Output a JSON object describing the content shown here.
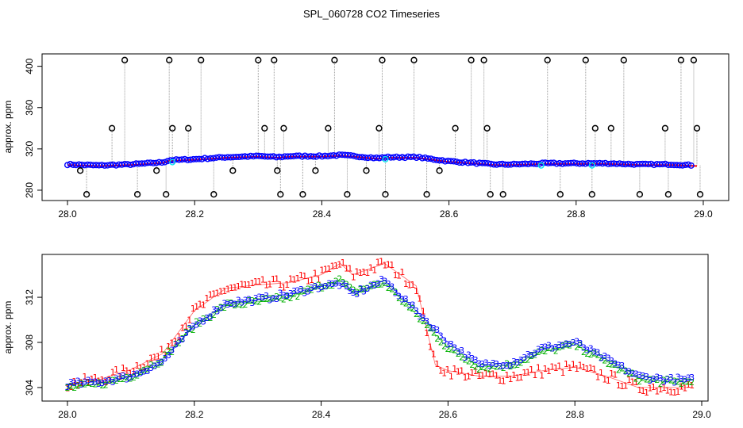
{
  "figure": {
    "title": "SPL_060728  CO2 Timeseries"
  },
  "chart_data": [
    {
      "type": "scatter",
      "title": "",
      "xlabel": "",
      "ylabel": "approx. ppm",
      "xlim": [
        27.96,
        29.04
      ],
      "ylim": [
        270,
        412
      ],
      "x_ticks": [
        28.0,
        28.2,
        28.4,
        28.6,
        28.8,
        29.0
      ],
      "x_tick_labels": [
        "28.0",
        "28.2",
        "28.4",
        "28.6",
        "28.8",
        "29.0"
      ],
      "y_ticks": [
        280,
        320,
        360,
        400
      ],
      "y_tick_labels": [
        "280",
        "320",
        "360",
        "400"
      ],
      "series": [
        {
          "name": "baseline (blue circles)",
          "color": "#0000ff",
          "x": [
            28.0,
            28.05,
            28.1,
            28.15,
            28.16,
            28.2,
            28.25,
            28.3,
            28.33,
            28.35,
            28.4,
            28.43,
            28.45,
            28.49,
            28.5,
            28.55,
            28.6,
            28.65,
            28.67,
            28.7,
            28.75,
            28.8,
            28.85,
            28.9,
            28.95,
            28.99
          ],
          "y": [
            305,
            304,
            305,
            307,
            309,
            310,
            312,
            313,
            312,
            313,
            313,
            314,
            313,
            311,
            312,
            312,
            308,
            306,
            305,
            305,
            306,
            306,
            306,
            305,
            305,
            304
          ]
        },
        {
          "name": "outliers (black circles)",
          "color": "#000000",
          "x": [
            28.02,
            28.03,
            28.07,
            28.09,
            28.11,
            28.14,
            28.155,
            28.16,
            28.165,
            28.19,
            28.21,
            28.23,
            28.26,
            28.3,
            28.31,
            28.325,
            28.33,
            28.335,
            28.34,
            28.37,
            28.39,
            28.41,
            28.42,
            28.44,
            28.47,
            28.49,
            28.495,
            28.5,
            28.545,
            28.565,
            28.585,
            28.61,
            28.635,
            28.655,
            28.66,
            28.665,
            28.685,
            28.755,
            28.775,
            28.815,
            28.825,
            28.83,
            28.855,
            28.875,
            28.9,
            28.94,
            28.945,
            28.965,
            28.985,
            28.99,
            28.995
          ],
          "y": [
            299,
            276,
            340,
            406,
            276,
            299,
            276,
            406,
            340,
            340,
            406,
            276,
            299,
            406,
            340,
            406,
            299,
            276,
            340,
            276,
            299,
            340,
            406,
            276,
            299,
            340,
            406,
            276,
            406,
            276,
            299,
            340,
            406,
            406,
            340,
            276,
            276,
            406,
            276,
            406,
            276,
            340,
            340,
            406,
            276,
            340,
            276,
            406,
            406,
            340,
            276
          ]
        }
      ]
    },
    {
      "type": "scatter",
      "title": "",
      "xlabel": "",
      "ylabel": "approx. ppm",
      "xlim": [
        27.96,
        29.01
      ],
      "ylim": [
        302.8,
        315.8
      ],
      "x_ticks": [
        28.0,
        28.2,
        28.4,
        28.6,
        28.8,
        29.0
      ],
      "x_tick_labels": [
        "28.0",
        "28.2",
        "28.4",
        "28.6",
        "28.8",
        "29.0"
      ],
      "y_ticks": [
        304,
        308,
        312
      ],
      "y_tick_labels": [
        "304",
        "308",
        "312"
      ],
      "series": [
        {
          "name": "1",
          "color": "#ff0000",
          "marker": "1",
          "x": [
            28.0,
            28.05,
            28.1,
            28.15,
            28.2,
            28.25,
            28.3,
            28.35,
            28.4,
            28.43,
            28.45,
            28.5,
            28.55,
            28.58,
            28.6,
            28.65,
            28.7,
            28.75,
            28.8,
            28.85,
            28.9,
            28.95,
            28.99
          ],
          "y": [
            304.3,
            304.7,
            305.6,
            307.0,
            310.8,
            312.8,
            313.1,
            313.3,
            314.0,
            315.0,
            314.0,
            315.0,
            313.0,
            306.0,
            305.5,
            305.0,
            305.0,
            305.5,
            305.8,
            305.0,
            304.0,
            304.0,
            304.0
          ]
        },
        {
          "name": "2",
          "color": "#00b000",
          "marker": "2",
          "x": [
            28.0,
            28.05,
            28.1,
            28.15,
            28.2,
            28.25,
            28.3,
            28.35,
            28.4,
            28.43,
            28.45,
            28.5,
            28.55,
            28.6,
            28.65,
            28.7,
            28.75,
            28.8,
            28.85,
            28.9,
            28.95,
            28.99
          ],
          "y": [
            304.0,
            304.3,
            305.0,
            306.5,
            309.5,
            311.3,
            311.6,
            312.0,
            313.0,
            313.5,
            312.5,
            313.3,
            310.5,
            307.5,
            305.8,
            306.0,
            307.2,
            307.8,
            306.3,
            304.8,
            304.5,
            304.5
          ]
        },
        {
          "name": "3",
          "color": "#0000ff",
          "marker": "3",
          "x": [
            28.0,
            28.05,
            28.1,
            28.15,
            28.2,
            28.25,
            28.3,
            28.35,
            28.4,
            28.43,
            28.45,
            28.5,
            28.55,
            28.6,
            28.65,
            28.7,
            28.75,
            28.8,
            28.85,
            28.9,
            28.95,
            28.99
          ],
          "y": [
            304.3,
            304.5,
            305.0,
            306.3,
            309.5,
            311.5,
            311.8,
            312.3,
            313.0,
            313.2,
            312.3,
            313.5,
            310.8,
            308.0,
            306.0,
            306.2,
            307.5,
            308.0,
            306.5,
            305.0,
            304.7,
            304.7
          ]
        }
      ]
    }
  ]
}
